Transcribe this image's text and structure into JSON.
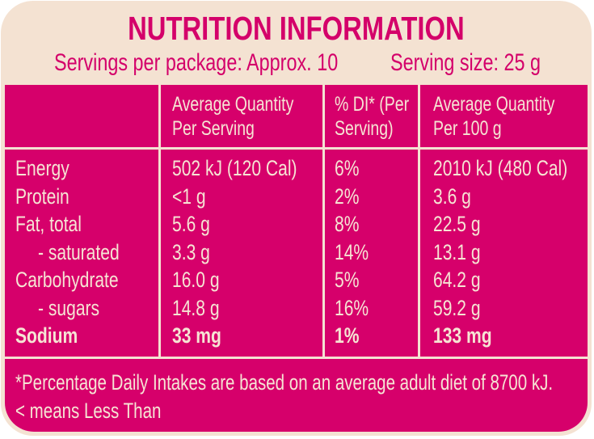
{
  "title": "NUTRITION INFORMATION",
  "servings_per_package": "Servings per package: Approx. 10",
  "serving_size": "Serving size: 25 g",
  "headers": [
    "Average Quantity\nPer Serving",
    "% DI* (Per\nServing)",
    "Average Quantity\nPer 100 g"
  ],
  "header_lines": {
    "c1": [
      "Average Quantity",
      "Per Serving"
    ],
    "c2": [
      "% DI* (Per",
      "Serving)"
    ],
    "c3": [
      "Average Quantity",
      "Per 100 g"
    ]
  },
  "rows": [
    {
      "name": "Energy",
      "per_serving": "502 kJ (120 Cal)",
      "di": "6%",
      "per_100g": "2010 kJ (480 Cal)"
    },
    {
      "name": "Protein",
      "per_serving": "<1 g",
      "di": "2%",
      "per_100g": "3.6 g"
    },
    {
      "name": "Fat, total",
      "per_serving": "5.6 g",
      "di": "8%",
      "per_100g": "22.5 g"
    },
    {
      "name": "- saturated",
      "per_serving": "3.3 g",
      "di": "14%",
      "per_100g": "13.1 g"
    },
    {
      "name": "Carbohydrate",
      "per_serving": "16.0 g",
      "di": "5%",
      "per_100g": "64.2 g"
    },
    {
      "name": "- sugars",
      "per_serving": "14.8 g",
      "di": "16%",
      "per_100g": "59.2 g"
    },
    {
      "name": "Sodium",
      "per_serving": "33 mg",
      "di": "1%",
      "per_100g": "133 mg"
    }
  ],
  "footnote": "*Percentage Daily Intakes are based on an average adult diet of 8700 kJ.",
  "footnote2": "< means Less Than",
  "colors": {
    "pink": "#d6006b",
    "cream": "#f4e2d2"
  }
}
